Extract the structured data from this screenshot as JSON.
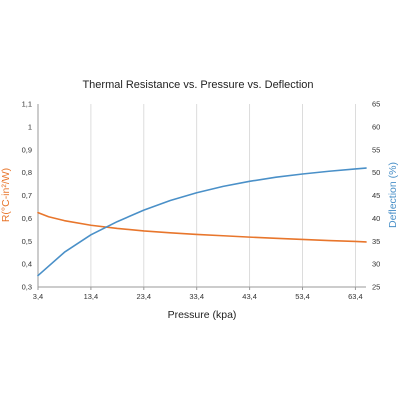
{
  "chart_data": {
    "type": "line",
    "title": "Thermal Resistance vs. Pressure vs. Deflection",
    "xlabel": "Pressure (kpa)",
    "ylabel_left": "R(°C-in²/W)",
    "ylabel_right": "Deflection (%)",
    "x_ticks": [
      "3,4",
      "13,4",
      "23,4",
      "33,4",
      "43,4",
      "53,4",
      "63,4"
    ],
    "x_tick_values": [
      3.4,
      13.4,
      23.4,
      33.4,
      43.4,
      53.4,
      63.4
    ],
    "xlim": [
      3.4,
      65.4
    ],
    "y_left_ticks": [
      "0,3",
      "0,4",
      "0,5",
      "0,6",
      "0,7",
      "0,8",
      "0,9",
      "1",
      "1,1"
    ],
    "y_left_tick_values": [
      0.3,
      0.4,
      0.5,
      0.6,
      0.7,
      0.8,
      0.9,
      1.0,
      1.1
    ],
    "ylim_left": [
      0.3,
      1.1
    ],
    "y_right_ticks": [
      "25",
      "30",
      "35",
      "40",
      "45",
      "50",
      "55",
      "60",
      "65"
    ],
    "y_right_tick_values": [
      25,
      30,
      35,
      40,
      45,
      50,
      55,
      60,
      65
    ],
    "ylim_right": [
      25,
      65
    ],
    "grid": "vertical",
    "series": [
      {
        "axis": "left",
        "color": "#e8762c",
        "x": [
          3.4,
          5.4,
          8.4,
          13.4,
          18.4,
          23.4,
          28.4,
          33.4,
          38.4,
          43.4,
          48.4,
          53.4,
          58.4,
          63.4,
          65.4
        ],
        "y": [
          0.625,
          0.607,
          0.59,
          0.57,
          0.556,
          0.545,
          0.537,
          0.53,
          0.524,
          0.518,
          0.513,
          0.508,
          0.503,
          0.499,
          0.497
        ]
      },
      {
        "axis": "right",
        "color": "#4a90c8",
        "x": [
          3.4,
          8.4,
          13.4,
          18.4,
          23.4,
          28.4,
          33.4,
          38.4,
          43.4,
          48.4,
          53.4,
          58.4,
          63.4,
          65.4
        ],
        "y": [
          27.5,
          32.6,
          36.4,
          39.3,
          41.8,
          43.9,
          45.6,
          47.0,
          48.1,
          49.0,
          49.7,
          50.3,
          50.8,
          51.0
        ]
      }
    ]
  }
}
